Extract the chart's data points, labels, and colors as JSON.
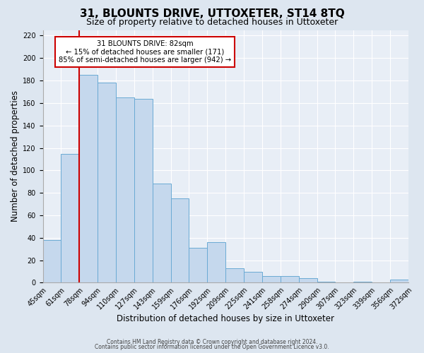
{
  "title": "31, BLOUNTS DRIVE, UTTOXETER, ST14 8TQ",
  "subtitle": "Size of property relative to detached houses in Uttoxeter",
  "xlabel": "Distribution of detached houses by size in Uttoxeter",
  "ylabel": "Number of detached properties",
  "bin_labels": [
    "45sqm",
    "61sqm",
    "78sqm",
    "94sqm",
    "110sqm",
    "127sqm",
    "143sqm",
    "159sqm",
    "176sqm",
    "192sqm",
    "209sqm",
    "225sqm",
    "241sqm",
    "258sqm",
    "274sqm",
    "290sqm",
    "307sqm",
    "323sqm",
    "339sqm",
    "356sqm",
    "372sqm"
  ],
  "bar_heights": [
    38,
    115,
    185,
    178,
    165,
    164,
    88,
    75,
    31,
    36,
    13,
    10,
    6,
    6,
    4,
    1,
    0,
    1,
    0,
    3
  ],
  "bar_color": "#c5d8ed",
  "bar_edge_color": "#6aaad4",
  "vline_index": 2,
  "vline_color": "#cc0000",
  "annotation_line1": "31 BLOUNTS DRIVE: 82sqm",
  "annotation_line2": "← 15% of detached houses are smaller (171)",
  "annotation_line3": "85% of semi-detached houses are larger (942) →",
  "ylim_max": 225,
  "yticks": [
    0,
    20,
    40,
    60,
    80,
    100,
    120,
    140,
    160,
    180,
    200,
    220
  ],
  "background_color": "#dde6f0",
  "plot_background_color": "#e8eef6",
  "grid_color": "#ffffff",
  "footer1": "Contains HM Land Registry data © Crown copyright and database right 2024.",
  "footer2": "Contains public sector information licensed under the Open Government Licence v3.0.",
  "title_fontsize": 11,
  "subtitle_fontsize": 9,
  "xlabel_fontsize": 8.5,
  "ylabel_fontsize": 8.5,
  "tick_fontsize": 7,
  "footer_fontsize": 5.5
}
